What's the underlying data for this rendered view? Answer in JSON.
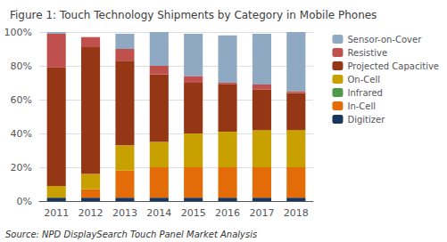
{
  "chart_data": {
    "type": "bar",
    "title": "Figure 1: Touch Technology Shipments by Category in Mobile Phones",
    "annotations": [
      "Source: NPD DisplaySearch Touch Panel Market Analysis"
    ],
    "categories": [
      "2011",
      "2012",
      "2013",
      "2014",
      "2015",
      "2016",
      "2017",
      "2018"
    ],
    "series": [
      {
        "name": "Digitizer",
        "color": "#17375E",
        "values": [
          2,
          2,
          2,
          2,
          2,
          2,
          2,
          2
        ]
      },
      {
        "name": "In-Cell",
        "color": "#E36C09",
        "values": [
          0,
          5,
          16,
          18,
          18,
          18,
          18,
          18
        ]
      },
      {
        "name": "Infrared",
        "color": "#4E9B47",
        "values": [
          0,
          0,
          0,
          0,
          0,
          0,
          0,
          0
        ]
      },
      {
        "name": "On-Cell",
        "color": "#C8A000",
        "values": [
          7,
          9,
          15,
          15,
          20,
          21,
          22,
          22
        ]
      },
      {
        "name": "Projected Capacitive",
        "color": "#953715",
        "values": [
          70,
          75,
          50,
          40,
          30,
          28,
          24,
          22
        ]
      },
      {
        "name": "Resistive",
        "color": "#C0504D",
        "values": [
          20,
          6,
          7,
          5,
          4,
          1,
          3,
          1
        ]
      },
      {
        "name": "Sensor-on-Cover",
        "color": "#8EA9C1",
        "values": [
          1,
          0,
          9,
          20,
          25,
          28,
          30,
          35
        ]
      }
    ],
    "stacked": true,
    "ylim": [
      0,
      100
    ],
    "yticks": [
      {
        "value": 0,
        "label": "0%"
      },
      {
        "value": 20,
        "label": "20%"
      },
      {
        "value": 40,
        "label": "40%"
      },
      {
        "value": 60,
        "label": "60%"
      },
      {
        "value": 80,
        "label": "80%"
      },
      {
        "value": 100,
        "label": "100%"
      }
    ],
    "grid": true,
    "legend": "right"
  }
}
